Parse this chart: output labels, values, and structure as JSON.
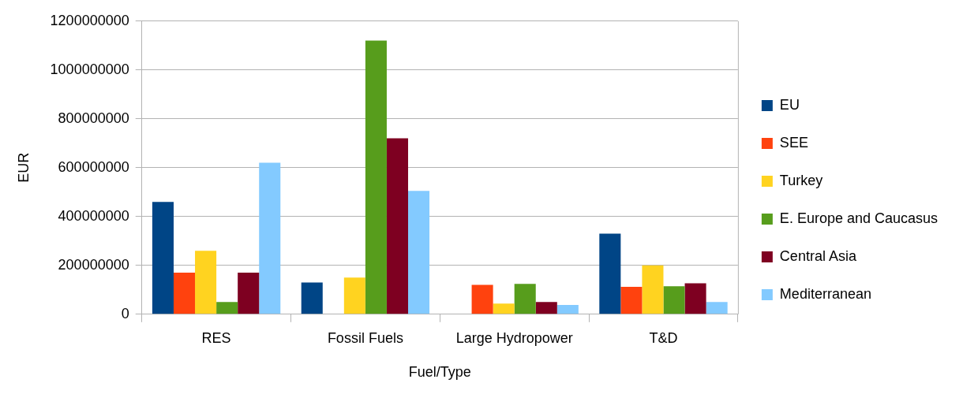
{
  "chart_data": {
    "type": "bar",
    "xlabel": "Fuel/Type",
    "ylabel": "EUR",
    "categories": [
      "RES",
      "Fossil Fuels",
      "Large Hydropower",
      "T&D"
    ],
    "series": [
      {
        "name": "EU",
        "color": "#004586",
        "values": [
          460000000,
          130000000,
          0,
          330000000
        ]
      },
      {
        "name": "SEE",
        "color": "#ff420e",
        "values": [
          170000000,
          0,
          120000000,
          112000000
        ]
      },
      {
        "name": "Turkey",
        "color": "#ffd320",
        "values": [
          260000000,
          150000000,
          44000000,
          200000000
        ]
      },
      {
        "name": "E. Europe and Caucasus",
        "color": "#579d1c",
        "values": [
          50000000,
          1120000000,
          124000000,
          115000000
        ]
      },
      {
        "name": "Central Asia",
        "color": "#7e0021",
        "values": [
          170000000,
          720000000,
          50000000,
          127000000
        ]
      },
      {
        "name": "Mediterranean",
        "color": "#83caff",
        "values": [
          620000000,
          505000000,
          38000000,
          50000000
        ]
      }
    ],
    "ylim": [
      0,
      1200000000
    ],
    "yticks": [
      0,
      200000000,
      400000000,
      600000000,
      800000000,
      1000000000,
      1200000000
    ],
    "grid": "y",
    "legend": "right"
  }
}
